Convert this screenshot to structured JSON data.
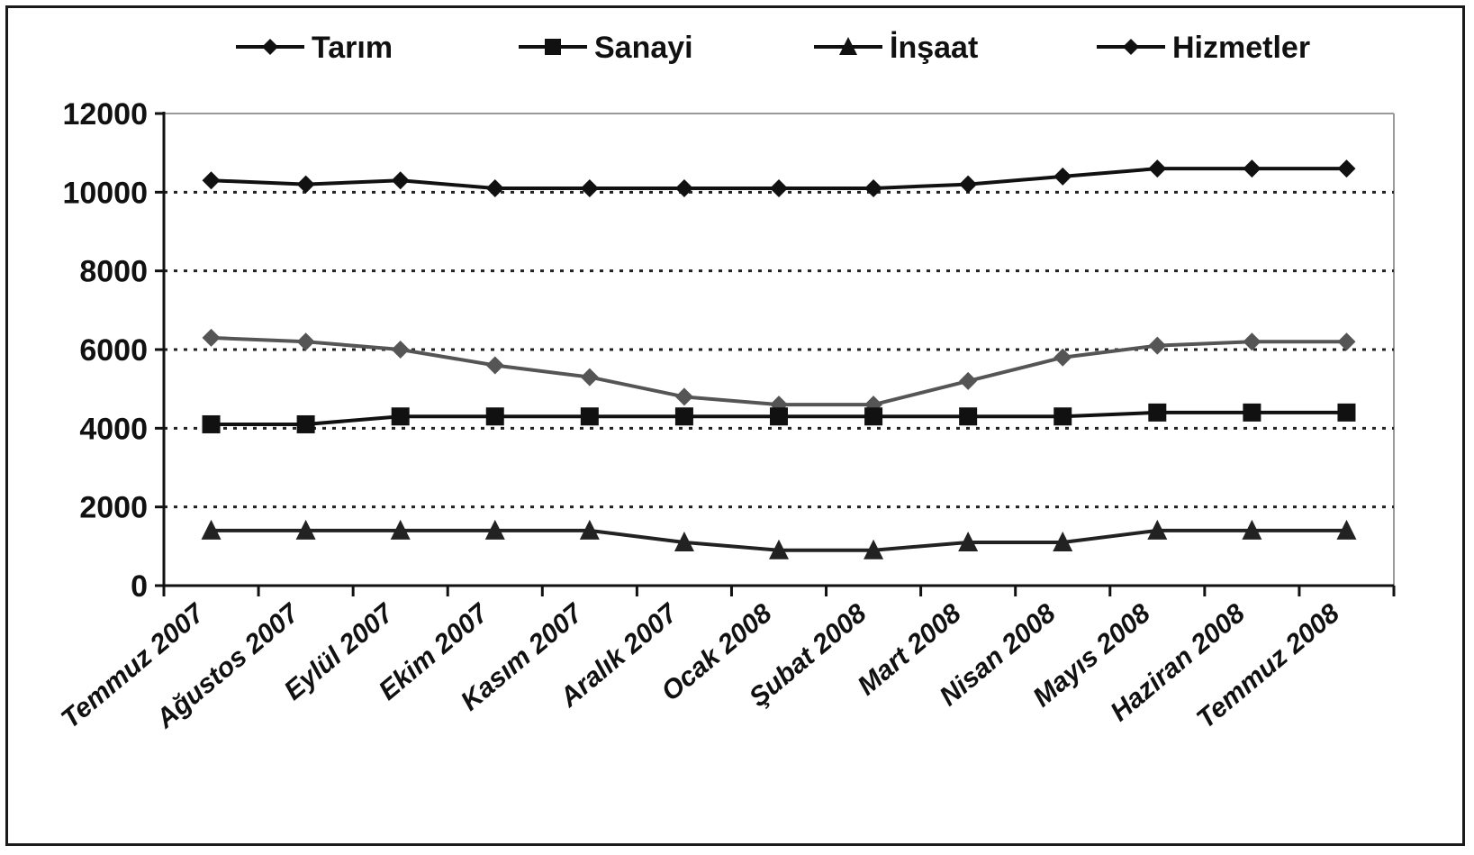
{
  "chart_data": {
    "type": "line",
    "title": "",
    "xlabel": "",
    "ylabel": "",
    "ylim": [
      0,
      12000
    ],
    "yticks": [
      0,
      2000,
      4000,
      6000,
      8000,
      10000,
      12000
    ],
    "grid": "horizontal dotted",
    "legend_position": "top",
    "categories": [
      "Temmuz 2007",
      "Ağustos 2007",
      "Eylül 2007",
      "Ekim 2007",
      "Kasım 2007",
      "Aralık 2007",
      "Ocak 2008",
      "Şubat 2008",
      "Mart 2008",
      "Nisan 2008",
      "Mayıs 2008",
      "Haziran 2008",
      "Temmuz 2008"
    ],
    "series": [
      {
        "name": "Tarım",
        "marker": "diamond",
        "color": "#555555",
        "values": [
          6300,
          6200,
          6000,
          5600,
          5300,
          4800,
          4600,
          4600,
          5200,
          5800,
          6100,
          6200,
          6200
        ]
      },
      {
        "name": "Sanayi",
        "marker": "square",
        "color": "#111111",
        "values": [
          4100,
          4100,
          4300,
          4300,
          4300,
          4300,
          4300,
          4300,
          4300,
          4300,
          4400,
          4400,
          4400
        ]
      },
      {
        "name": "İnşaat",
        "marker": "triangle",
        "color": "#222222",
        "values": [
          1400,
          1400,
          1400,
          1400,
          1400,
          1100,
          900,
          900,
          1100,
          1100,
          1400,
          1400,
          1400
        ]
      },
      {
        "name": "Hizmetler",
        "marker": "diamond",
        "color": "#111111",
        "values": [
          10300,
          10200,
          10300,
          10100,
          10100,
          10100,
          10100,
          10100,
          10200,
          10400,
          10600,
          10600,
          10600
        ]
      }
    ]
  }
}
